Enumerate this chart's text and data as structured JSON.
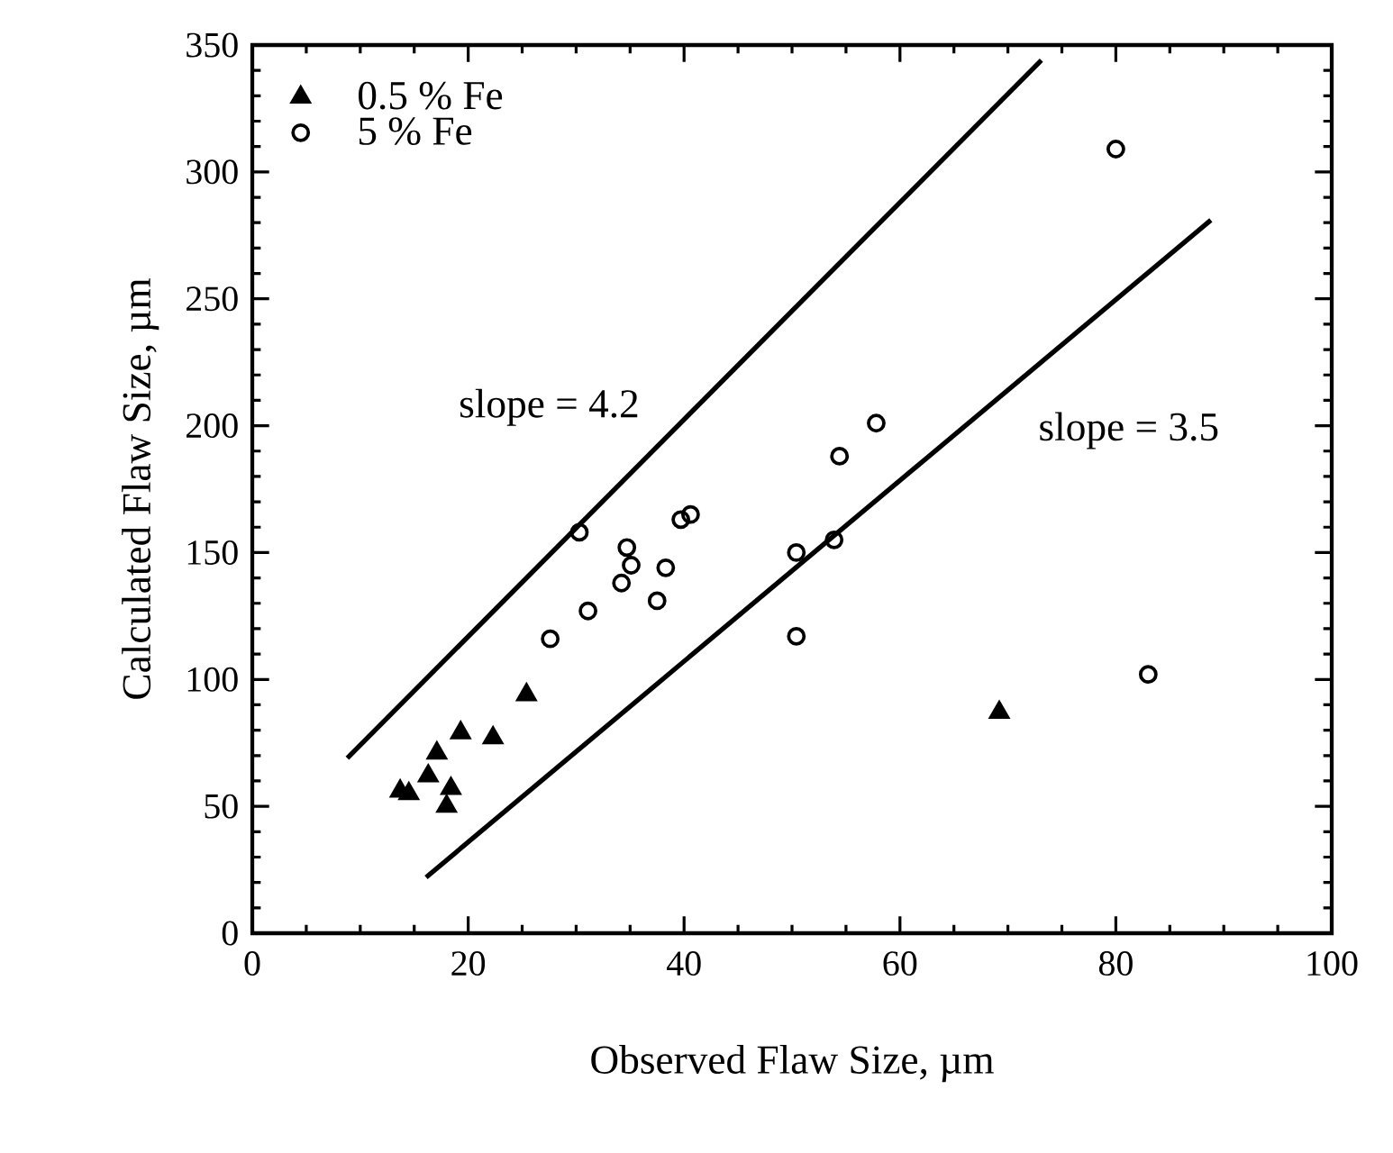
{
  "chart_data": {
    "type": "scatter",
    "xlabel": "Observed Flaw Size, µm",
    "ylabel": "Calculated Flaw Size, µm",
    "xlim": [
      0,
      100
    ],
    "xticks": [
      0,
      20,
      40,
      60,
      80,
      100
    ],
    "ylim": [
      0,
      350
    ],
    "yticks": [
      0,
      50,
      100,
      150,
      200,
      250,
      300,
      350
    ],
    "grid": false,
    "legend": "top left",
    "series": [
      {
        "name": "0.5 % Fe",
        "color": "#000000",
        "marker": "triangle",
        "x": [
          13.7,
          14.5,
          16.3,
          17.1,
          18.4,
          18.0,
          19.3,
          22.3,
          25.4,
          69.2
        ],
        "values": [
          56,
          55,
          62,
          71,
          57,
          50,
          79,
          77,
          94,
          87
        ]
      },
      {
        "name": "5 % Fe",
        "color": "#000000",
        "marker": "circle",
        "x": [
          80.0,
          57.8,
          54.4,
          39.7,
          40.6,
          30.3,
          34.7,
          35.1,
          34.2,
          38.3,
          37.5,
          31.1,
          27.6,
          50.4,
          53.9,
          50.4,
          83.0
        ],
        "values": [
          309,
          201,
          188,
          163,
          165,
          158,
          152,
          145,
          138,
          144,
          131,
          127,
          116,
          150,
          155,
          117,
          102
        ]
      },
      {
        "type": "line",
        "color": "#000000",
        "marker": "none",
        "x": [
          8.8,
          73.1
        ],
        "values": [
          69,
          344
        ]
      },
      {
        "type": "line",
        "color": "#000000",
        "marker": "none",
        "x": [
          16.1,
          88.8
        ],
        "values": [
          22,
          281
        ]
      }
    ],
    "annotations": [
      "slope = 4.2",
      "slope = 3.5"
    ]
  }
}
